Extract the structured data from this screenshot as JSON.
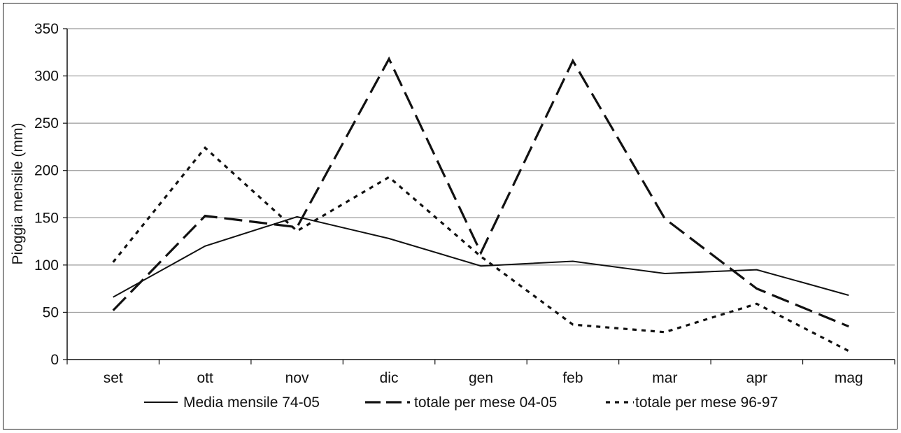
{
  "chart_data": {
    "type": "line",
    "title": "",
    "xlabel": "",
    "ylabel": "Pioggia mensile (mm)",
    "categories": [
      "set",
      "ott",
      "nov",
      "dic",
      "gen",
      "feb",
      "mar",
      "apr",
      "mag"
    ],
    "ylim": [
      0,
      350
    ],
    "yticks": [
      0,
      50,
      100,
      150,
      200,
      250,
      300,
      350
    ],
    "grid": true,
    "legend_position": "bottom",
    "series": [
      {
        "name": "Media mensile 74-05",
        "style": "solid",
        "color": "#111111",
        "values": [
          66,
          120,
          151,
          128,
          99,
          104,
          91,
          95,
          68
        ]
      },
      {
        "name": "totale per mese 04-05",
        "style": "long-dash",
        "color": "#111111",
        "values": [
          52,
          152,
          140,
          318,
          113,
          316,
          149,
          75,
          35
        ]
      },
      {
        "name": "totale per mese 96-97",
        "style": "dotted",
        "color": "#111111",
        "values": [
          103,
          224,
          136,
          193,
          109,
          37,
          29,
          59,
          9
        ]
      }
    ]
  }
}
